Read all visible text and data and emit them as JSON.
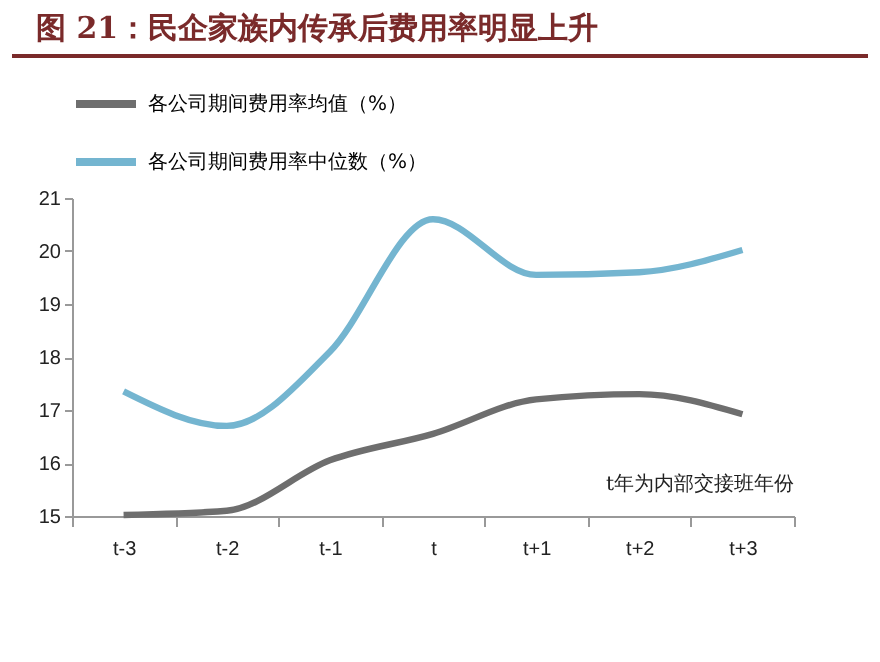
{
  "chart_data": {
    "type": "line",
    "title": "图 21：民企家族内传承后费用率明显上升",
    "categories": [
      "t-3",
      "t-2",
      "t-1",
      "t",
      "t+1",
      "t+2",
      "t+3"
    ],
    "series": [
      {
        "name": "各公司期间费用率均值（%）",
        "color": "#6e6e6e",
        "values": [
          15.02,
          15.1,
          16.05,
          16.55,
          17.2,
          17.3,
          16.92
        ]
      },
      {
        "name": "各公司期间费用率中位数（%）",
        "color": "#74b5d0",
        "values": [
          17.35,
          16.7,
          18.1,
          20.6,
          19.55,
          19.6,
          20.02
        ]
      }
    ],
    "ylim": [
      15,
      21
    ],
    "yticks": [
      15,
      16,
      17,
      18,
      19,
      20,
      21
    ],
    "grid": false,
    "legend": "top",
    "annotations": [
      "t年为内部交接班年份"
    ]
  }
}
